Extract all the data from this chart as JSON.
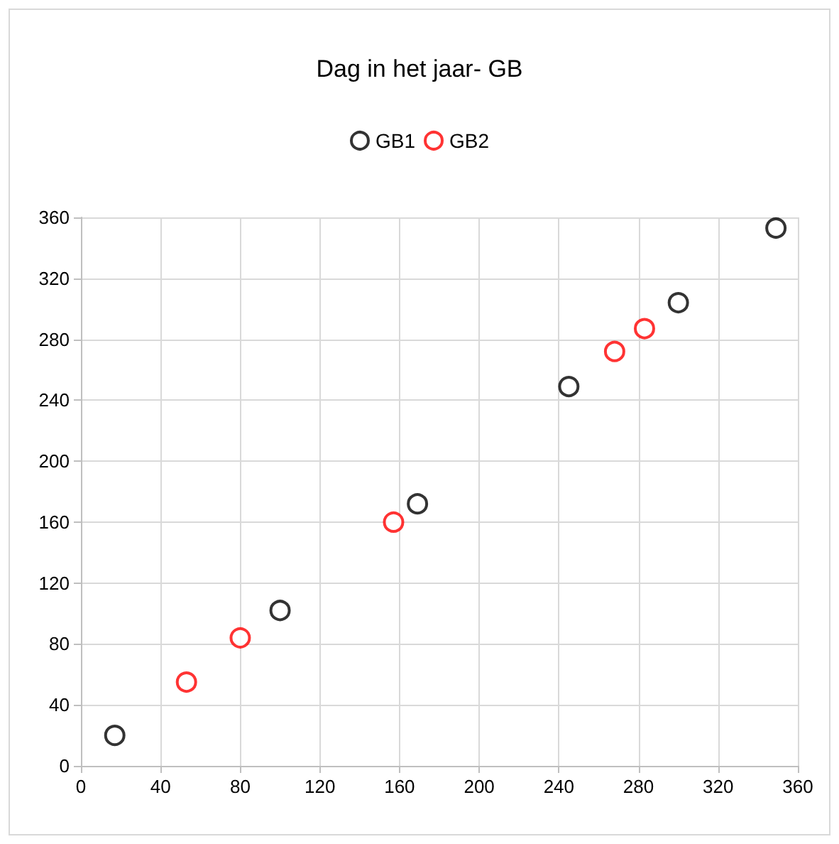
{
  "chart_data": {
    "type": "scatter",
    "title": "Dag in het jaar- GB",
    "series": [
      {
        "name": "GB1",
        "color": "#000000",
        "x": [
          17,
          100,
          169,
          245,
          300,
          349
        ],
        "values": [
          20,
          102,
          172,
          249,
          304,
          353
        ]
      },
      {
        "name": "GB2",
        "color": "#ff0000",
        "x": [
          53,
          80,
          157,
          268,
          283
        ],
        "values": [
          55,
          84,
          160,
          272,
          287
        ]
      }
    ],
    "xlim": [
      0,
      360
    ],
    "xticks": [
      0,
      40,
      80,
      120,
      160,
      200,
      240,
      280,
      320,
      360
    ],
    "ylim": [
      0,
      360
    ],
    "yticks": [
      0,
      40,
      80,
      120,
      160,
      200,
      240,
      280,
      320,
      360
    ],
    "grid": true,
    "legend": "top",
    "marker": "circle"
  }
}
